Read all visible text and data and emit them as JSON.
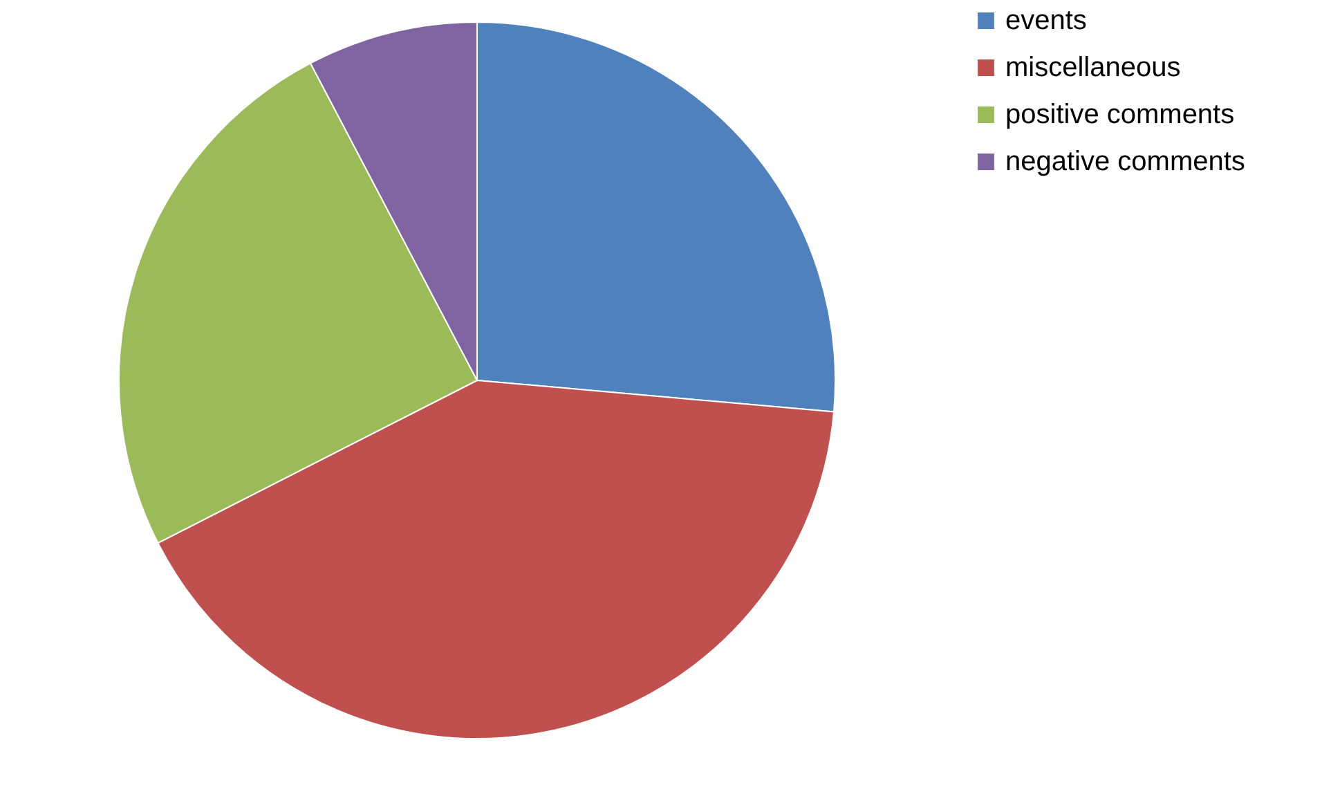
{
  "chart_data": {
    "type": "pie",
    "categories": [
      "events",
      "miscellaneous",
      "positive comments",
      "negative comments"
    ],
    "values": [
      26.4,
      41.1,
      24.8,
      7.7
    ],
    "colors": [
      "#4f81bd",
      "#c0504d",
      "#9bbb59",
      "#8064a2"
    ],
    "legend": "right"
  }
}
